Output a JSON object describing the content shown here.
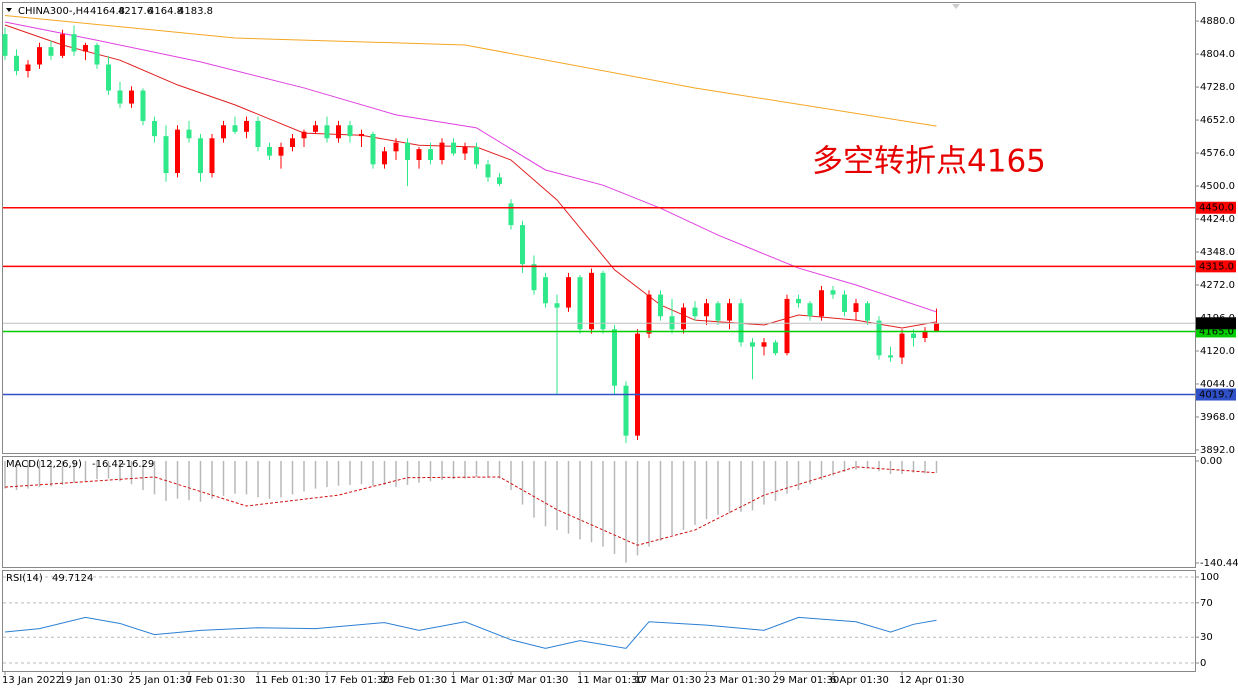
{
  "chart_data": {
    "type": "candlestick",
    "title": "CHINA300-,H4",
    "x": [
      "13 Jan 2022",
      null,
      null,
      null,
      null,
      "19 Jan 01:30",
      null,
      null,
      null,
      null,
      null,
      "25 Jan 01:30",
      null,
      null,
      null,
      null,
      "7 Feb 01:30",
      null,
      null,
      null,
      null,
      null,
      "11 Feb 01:30",
      null,
      null,
      null,
      null,
      null,
      "17 Feb 01:30",
      null,
      null,
      null,
      null,
      "23 Feb 01:30",
      null,
      null,
      null,
      null,
      null,
      "1 Mar 01:30",
      null,
      null,
      null,
      null,
      "7 Mar 01:30",
      null,
      null,
      null,
      null,
      null,
      "11 Mar 01:30",
      null,
      null,
      null,
      null,
      "17 Mar 01:30",
      null,
      null,
      null,
      null,
      null,
      "23 Mar 01:30",
      null,
      null,
      null,
      null,
      null,
      "29 Mar 01:30",
      null,
      null,
      null,
      null,
      "6 Apr 01:30",
      null,
      null,
      null,
      null,
      null,
      "12 Apr 01:30",
      null,
      null,
      null
    ],
    "open": [
      4850,
      4800,
      4765,
      4780,
      4820,
      4800,
      4850,
      4810,
      4825,
      4780,
      4720,
      4690,
      4720,
      4650,
      4615,
      4530,
      4630,
      4610,
      4530,
      4610,
      4640,
      4625,
      4650,
      4590,
      4570,
      4590,
      4610,
      4625,
      4640,
      4610,
      4640,
      4615,
      4620,
      4550,
      4580,
      4600,
      4560,
      4585,
      4560,
      4600,
      4575,
      4590,
      4550,
      4520,
      4460,
      4410,
      4320,
      4290,
      4230,
      4220,
      4290,
      4170,
      4300,
      4170,
      4040,
      3925,
      4160,
      4250,
      4200,
      4170,
      4220,
      4200,
      4230,
      4190,
      4230,
      4140,
      4130,
      4140,
      4115,
      4240,
      4230,
      4200,
      4260,
      4250,
      4210,
      4230,
      4190,
      4110,
      4105,
      4160,
      4150,
      4164.8
    ],
    "high": [
      4865,
      4815,
      4790,
      4830,
      4835,
      4860,
      4870,
      4830,
      4830,
      4800,
      4740,
      4730,
      4725,
      4660,
      4640,
      4640,
      4650,
      4620,
      4620,
      4650,
      4660,
      4660,
      4660,
      4600,
      4600,
      4620,
      4630,
      4650,
      4660,
      4650,
      4650,
      4630,
      4625,
      4590,
      4610,
      4610,
      4590,
      4600,
      4610,
      4610,
      4600,
      4600,
      4560,
      4530,
      4470,
      4420,
      4340,
      4300,
      4250,
      4300,
      4295,
      4310,
      4305,
      4180,
      4050,
      4170,
      4260,
      4260,
      4240,
      4230,
      4235,
      4240,
      4235,
      4240,
      4240,
      4150,
      4150,
      4145,
      4250,
      4250,
      4235,
      4270,
      4270,
      4260,
      4240,
      4235,
      4200,
      4130,
      4170,
      4170,
      4175,
      4217.6
    ],
    "low": [
      4790,
      4755,
      4750,
      4770,
      4790,
      4795,
      4800,
      4790,
      4770,
      4710,
      4680,
      4680,
      4640,
      4600,
      4510,
      4520,
      4600,
      4510,
      4520,
      4600,
      4620,
      4610,
      4580,
      4560,
      4540,
      4580,
      4590,
      4620,
      4600,
      4600,
      4600,
      4590,
      4540,
      4540,
      4560,
      4500,
      4540,
      4550,
      4550,
      4570,
      4560,
      4540,
      4510,
      4500,
      4400,
      4300,
      4250,
      4220,
      4020,
      4210,
      4160,
      4160,
      4160,
      4020,
      3908,
      3915,
      4150,
      4190,
      4160,
      4160,
      4190,
      4180,
      4180,
      4170,
      4130,
      4055,
      4110,
      4110,
      4110,
      4220,
      4190,
      4190,
      4240,
      4200,
      4190,
      4180,
      4100,
      4095,
      4090,
      4130,
      4140,
      4164.8
    ],
    "close": [
      4800,
      4765,
      4780,
      4820,
      4800,
      4850,
      4810,
      4825,
      4780,
      4720,
      4690,
      4720,
      4650,
      4615,
      4530,
      4630,
      4610,
      4530,
      4610,
      4640,
      4625,
      4650,
      4590,
      4570,
      4590,
      4610,
      4625,
      4640,
      4610,
      4640,
      4615,
      4620,
      4550,
      4580,
      4600,
      4560,
      4585,
      4560,
      4600,
      4575,
      4590,
      4550,
      4520,
      4505,
      4410,
      4320,
      4260,
      4230,
      4220,
      4290,
      4170,
      4300,
      4170,
      4040,
      3925,
      4160,
      4250,
      4200,
      4170,
      4220,
      4200,
      4230,
      4190,
      4230,
      4140,
      4130,
      4140,
      4115,
      4240,
      4230,
      4200,
      4260,
      4250,
      4210,
      4230,
      4190,
      4110,
      4105,
      4160,
      4150,
      4165,
      4183.8
    ],
    "up_color": "#ff0000",
    "down_color": "#2ee88a",
    "ylim": [
      3885,
      4924
    ],
    "yticks": [
      {
        "value": 4880,
        "label": "4880.0"
      },
      {
        "value": 4804,
        "label": "4804.0"
      },
      {
        "value": 4728,
        "label": "4728.0"
      },
      {
        "value": 4652,
        "label": "4652.0"
      },
      {
        "value": 4576,
        "label": "4576.0"
      },
      {
        "value": 4500,
        "label": "4500.0"
      },
      {
        "value": 4424,
        "label": "4424.0"
      },
      {
        "value": 4348,
        "label": "4348.0"
      },
      {
        "value": 4272,
        "label": "4272.0"
      },
      {
        "value": 4196,
        "label": "4196.0"
      },
      {
        "value": 4120,
        "label": "4120.0"
      },
      {
        "value": 4044,
        "label": "4044.0"
      },
      {
        "value": 3968,
        "label": "3968.0"
      },
      {
        "value": 3892,
        "label": "3892.0"
      }
    ],
    "lines": [
      {
        "color": "#f5a623",
        "x": [
          0,
          20,
          40,
          60,
          81
        ],
        "values": [
          4893,
          4841,
          4825,
          4726,
          4638
        ]
      },
      {
        "color": "#e040e0",
        "x": [
          0,
          8,
          17,
          26,
          34,
          41,
          47,
          52,
          57,
          62,
          69,
          74,
          81
        ],
        "values": [
          4878,
          4836,
          4786,
          4726,
          4664,
          4634,
          4537,
          4502,
          4449,
          4387,
          4311,
          4272,
          4210
        ]
      },
      {
        "color": "#e02020",
        "x": [
          0,
          5,
          10,
          15,
          20,
          26,
          31,
          36,
          41,
          44,
          48,
          53,
          57,
          60,
          66,
          69,
          74,
          78,
          81
        ],
        "values": [
          4871,
          4825,
          4790,
          4733,
          4687,
          4622,
          4617,
          4594,
          4590,
          4560,
          4468,
          4307,
          4226,
          4191,
          4180,
          4203,
          4191,
          4173,
          4187
        ]
      }
    ],
    "levels": [
      {
        "value": 4450,
        "label": "4450.0",
        "color": "#ff0000"
      },
      {
        "value": 4315,
        "label": "4315.0",
        "color": "#ff0000"
      },
      {
        "value": 4165,
        "label": "4165.0",
        "color": "#00cc00"
      },
      {
        "value": 4019.7,
        "label": "4019.7",
        "color": "#3050c8"
      }
    ],
    "annotation": "多空转折点4165",
    "macd": {
      "title": "MACD(12,26,9)",
      "histogram": [
        -38,
        -40,
        -38,
        -36,
        -35,
        -33,
        -30,
        -28,
        -25,
        -24,
        -28,
        -32,
        -40,
        -46,
        -55,
        -52,
        -54,
        -56,
        -52,
        -48,
        -45,
        -46,
        -50,
        -52,
        -50,
        -46,
        -42,
        -38,
        -36,
        -34,
        -33,
        -32,
        -34,
        -33,
        -36,
        -33,
        -30,
        -28,
        -26,
        -25,
        -24,
        -22,
        -22,
        -24,
        -40,
        -60,
        -78,
        -90,
        -95,
        -100,
        -108,
        -112,
        -118,
        -128,
        -140,
        -130,
        -118,
        -110,
        -102,
        -95,
        -88,
        -80,
        -74,
        -72,
        -70,
        -68,
        -60,
        -55,
        -45,
        -40,
        -32,
        -26,
        -20,
        -15,
        -12,
        -10,
        -14,
        -18,
        -18,
        -16,
        -17,
        -16.42
      ],
      "histogram_color": "#b8b8b8",
      "signal": {
        "color": "#d01010",
        "x": [
          0,
          13,
          21,
          29,
          35,
          43,
          48,
          55,
          60,
          66,
          74,
          81
        ],
        "values": [
          -36,
          -22,
          -62,
          -47,
          -23,
          -22,
          -67,
          -116,
          -95,
          -47,
          -8,
          -16.29
        ]
      },
      "ylim": [
        -146,
        5.5
      ],
      "yticks": [
        {
          "value": 0,
          "label": "0.00"
        },
        -140.44
      ]
    },
    "rsi": {
      "title": "RSI(14)",
      "color": "#2a7fd4",
      "x": [
        0,
        3,
        7,
        10,
        13,
        17,
        22,
        27,
        33,
        36,
        40,
        44,
        47,
        50,
        54,
        56,
        61,
        66,
        69,
        74,
        77,
        79,
        81
      ],
      "values": [
        36,
        40,
        53,
        46,
        33,
        38,
        41,
        40,
        47,
        38,
        48,
        27,
        17,
        26,
        17,
        48,
        44,
        38,
        53,
        48,
        36,
        45,
        49.7124
      ],
      "ylim": [
        -9.3,
        107
      ],
      "yticks": [
        100,
        70,
        30,
        0
      ],
      "grid": true
    }
  }
}
